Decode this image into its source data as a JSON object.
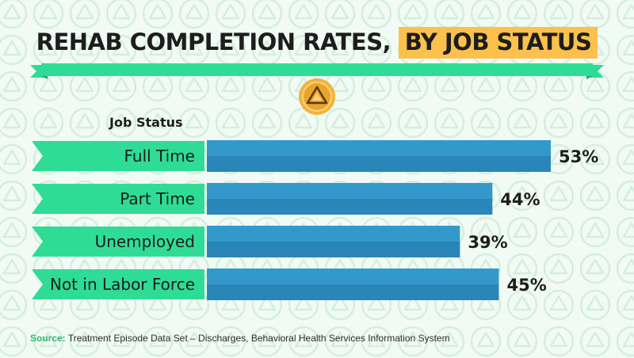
{
  "title": {
    "prefix": "REHAB COMPLETION RATES,",
    "highlight": "BY JOB STATUS"
  },
  "chart_data": {
    "type": "bar",
    "orientation": "horizontal",
    "group_label": "Job Status",
    "categories": [
      "Full Time",
      "Part Time",
      "Unemployed",
      "Not in Labor Force"
    ],
    "values": [
      53,
      44,
      39,
      45
    ],
    "value_labels": [
      "53%",
      "44%",
      "39%",
      "45%"
    ],
    "unit": "%",
    "xlim": [
      0,
      53
    ],
    "grid": false,
    "legend": "none"
  },
  "source": {
    "label": "Source:",
    "text": "Treatment Episode Data Set – Discharges, Behavioral Health Services Information System"
  },
  "colors": {
    "background": "#f1faf4",
    "pattern": "#d6efdf",
    "ribbon": "#2fdc96",
    "ribbon_dark": "#18a86c",
    "bar_top": "#3399cc",
    "bar_bottom": "#2a86b8",
    "highlight": "#fbc14c",
    "medal": "#f2b33a",
    "source_label": "#2fb86a"
  },
  "icons": [
    "medal-icon",
    "triangle-pattern-icon"
  ]
}
